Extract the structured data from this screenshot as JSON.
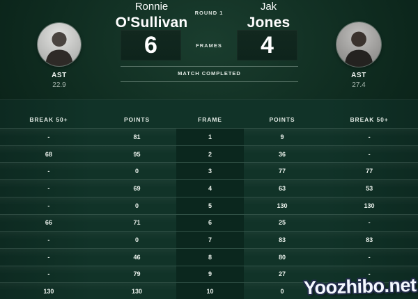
{
  "scoreboard": {
    "round_label": "ROUND 1",
    "frames_label": "FRAMES",
    "status_label": "MATCH COMPLETED",
    "left": {
      "first_name": "Ronnie",
      "last_name": "O'Sullivan",
      "score": "6",
      "stat_label": "AST",
      "stat_value": "22.9"
    },
    "right": {
      "first_name": "Jak",
      "last_name": "Jones",
      "score": "4",
      "stat_label": "AST",
      "stat_value": "27.4"
    }
  },
  "table": {
    "headers": [
      "BREAK 50+",
      "POINTS",
      "FRAME",
      "POINTS",
      "BREAK 50+"
    ],
    "rows": [
      [
        "-",
        "81",
        "1",
        "9",
        "-"
      ],
      [
        "68",
        "95",
        "2",
        "36",
        "-"
      ],
      [
        "-",
        "0",
        "3",
        "77",
        "77"
      ],
      [
        "-",
        "69",
        "4",
        "63",
        "53"
      ],
      [
        "-",
        "0",
        "5",
        "130",
        "130"
      ],
      [
        "66",
        "71",
        "6",
        "25",
        "-"
      ],
      [
        "-",
        "0",
        "7",
        "83",
        "83"
      ],
      [
        "-",
        "46",
        "8",
        "80",
        "-"
      ],
      [
        "-",
        "79",
        "9",
        "27",
        "-"
      ],
      [
        "130",
        "130",
        "10",
        "0",
        "-"
      ]
    ]
  },
  "watermark": "Yoozhibo.net",
  "colors": {
    "bg_deep": "#071c14",
    "bg_top": "#0f2c20",
    "bg_glow": "#1a3d2e",
    "bg_table": "#113328",
    "bg_table_edge": "#0d2a21",
    "frame_col": "#0b271e",
    "score_box": "#0e241c",
    "text_muted": "#a9b8b0"
  }
}
